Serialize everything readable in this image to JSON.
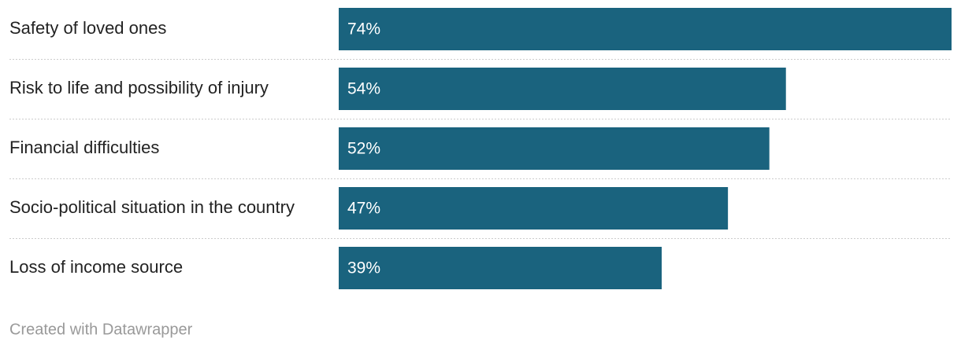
{
  "chart_data": {
    "type": "bar",
    "orientation": "horizontal",
    "categories": [
      "Safety of loved ones",
      "Risk to life and possibility of injury",
      "Financial difficulties",
      "Socio-political situation in the country",
      "Loss of income source"
    ],
    "values": [
      74,
      54,
      52,
      47,
      39
    ],
    "value_labels": [
      "74%",
      "54%",
      "52%",
      "47%",
      "39%"
    ],
    "color": "#1a637e",
    "credit": "Created with Datawrapper"
  }
}
